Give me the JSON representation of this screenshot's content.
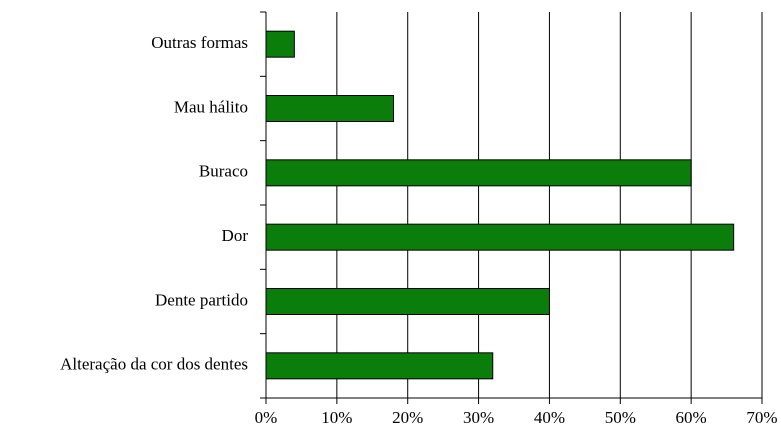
{
  "chart_data": {
    "type": "bar",
    "orientation": "horizontal",
    "categories": [
      "Outras formas",
      "Mau hálito",
      "Buraco",
      "Dor",
      "Dente partido",
      "Alteração da cor dos dentes"
    ],
    "values": [
      4,
      18,
      60,
      66,
      40,
      32
    ],
    "color": "#0b7d0b",
    "xlim": [
      0,
      70
    ],
    "xticks": [
      {
        "value": 0,
        "label": "0%"
      },
      {
        "value": 10,
        "label": "10%"
      },
      {
        "value": 20,
        "label": "20%"
      },
      {
        "value": 30,
        "label": "30%"
      },
      {
        "value": 40,
        "label": "40%"
      },
      {
        "value": 50,
        "label": "50%"
      },
      {
        "value": 60,
        "label": "60%"
      },
      {
        "value": 70,
        "label": "70%"
      }
    ],
    "grid": true
  }
}
